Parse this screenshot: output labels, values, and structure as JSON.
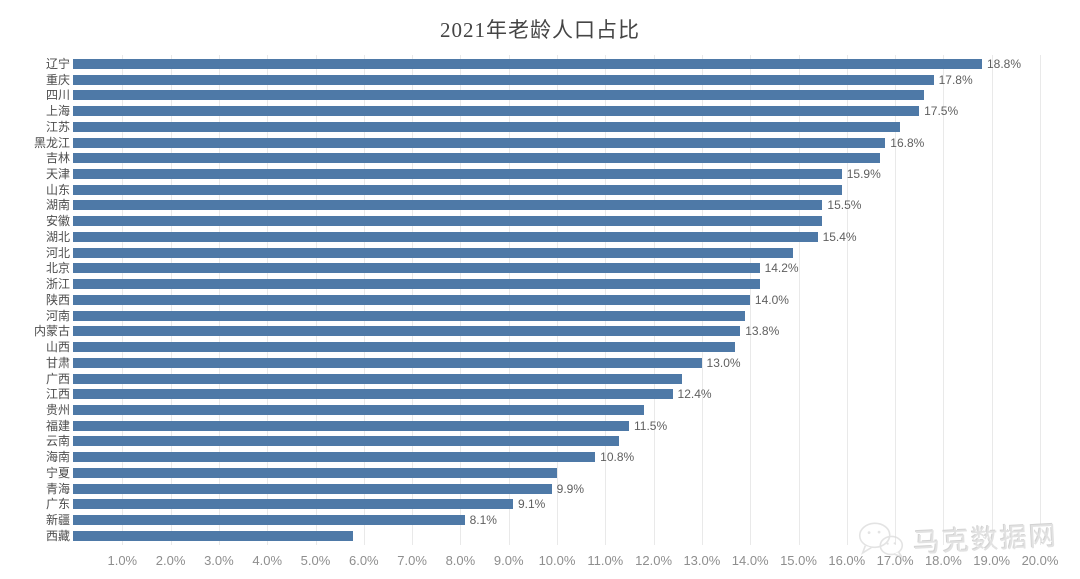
{
  "title": "2021年老龄人口占比",
  "watermark": {
    "icon": "wechat-icon",
    "text": "马克数据网"
  },
  "colors": {
    "bar": "#4e79a7",
    "grid": "#e9e9e9",
    "title_text": "#454545",
    "category_text": "#4d4d4d",
    "value_text": "#5f5f5f",
    "tick_text": "#8e8e8e",
    "watermark_text": "#e2e2e2"
  },
  "chart_data": {
    "type": "bar",
    "orientation": "horizontal",
    "title": "2021年老龄人口占比",
    "categories": [
      "辽宁",
      "重庆",
      "四川",
      "上海",
      "江苏",
      "黑龙江",
      "吉林",
      "天津",
      "山东",
      "湖南",
      "安徽",
      "湖北",
      "河北",
      "北京",
      "浙江",
      "陕西",
      "河南",
      "内蒙古",
      "山西",
      "甘肃",
      "广西",
      "江西",
      "贵州",
      "福建",
      "云南",
      "海南",
      "宁夏",
      "青海",
      "广东",
      "新疆",
      "西藏"
    ],
    "values": [
      18.8,
      17.8,
      17.6,
      17.5,
      17.1,
      16.8,
      16.7,
      15.9,
      15.9,
      15.5,
      15.5,
      15.4,
      14.9,
      14.2,
      14.2,
      14.0,
      13.9,
      13.8,
      13.7,
      13.0,
      12.6,
      12.4,
      11.8,
      11.5,
      11.3,
      10.8,
      10.0,
      9.9,
      9.1,
      8.1,
      5.8
    ],
    "value_labels": [
      "18.8%",
      "17.8%",
      "",
      "17.5%",
      "",
      "16.8%",
      "",
      "15.9%",
      "",
      "15.5%",
      "",
      "15.4%",
      "",
      "14.2%",
      "",
      "14.0%",
      "",
      "13.8%",
      "",
      "13.0%",
      "",
      "12.4%",
      "",
      "11.5%",
      "",
      "10.8%",
      "",
      "9.9%",
      "9.1%",
      "8.1%",
      ""
    ],
    "x_ticks": [
      "1.0%",
      "2.0%",
      "3.0%",
      "4.0%",
      "5.0%",
      "6.0%",
      "7.0%",
      "8.0%",
      "9.0%",
      "10.0%",
      "11.0%",
      "12.0%",
      "13.0%",
      "14.0%",
      "15.0%",
      "16.0%",
      "17.0%",
      "18.0%",
      "19.0%",
      "20.0%"
    ],
    "xlim": [
      0,
      20
    ],
    "grid": true,
    "legend": false
  }
}
